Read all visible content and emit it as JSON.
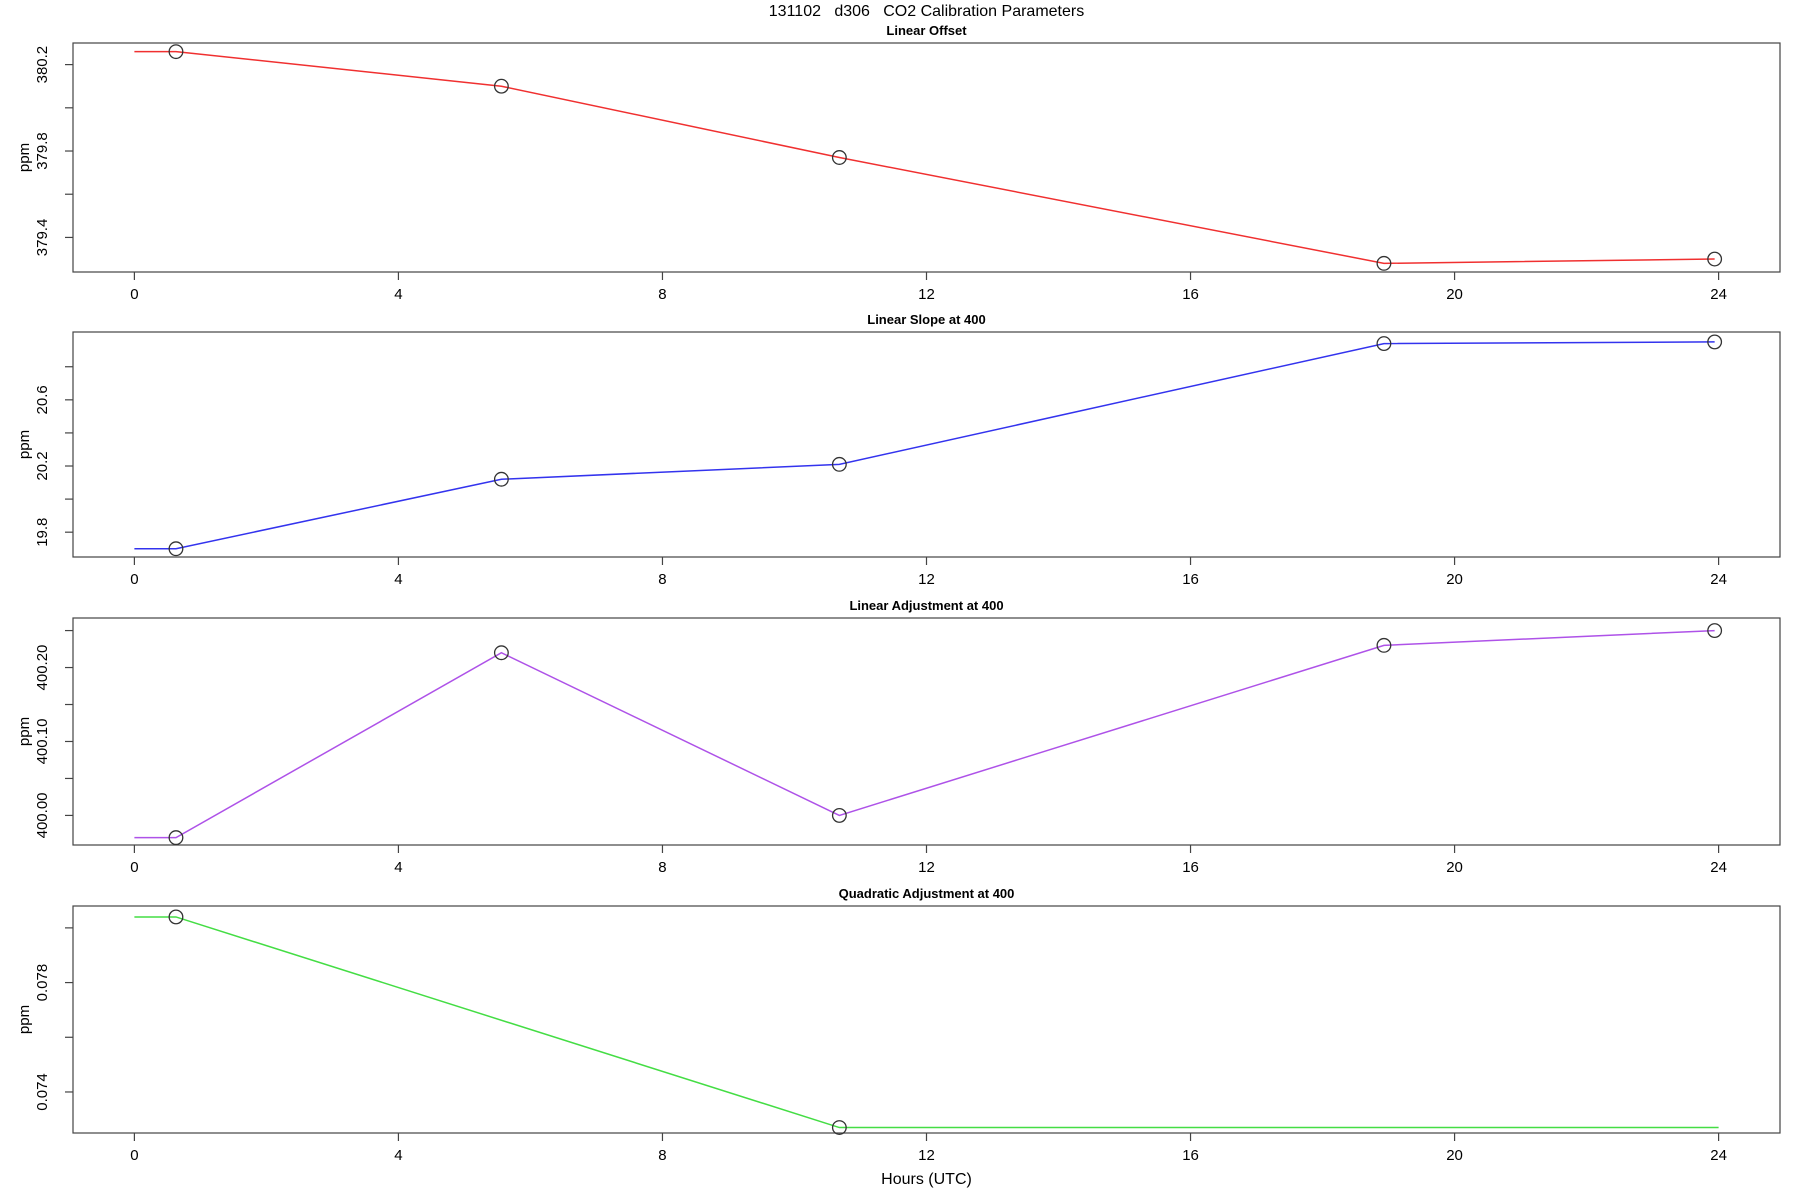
{
  "figure": {
    "title": "131102   d306   CO2 Calibration Parameters",
    "xlabel": "Hours (UTC)"
  },
  "style": {
    "axis_color": "#444444",
    "marker_color": "#333333",
    "background": "#ffffff"
  },
  "chart_data": [
    {
      "type": "line",
      "title": "Linear Offset",
      "ylabel": "ppm",
      "line_color": "#F03030",
      "x": [
        0,
        0.63,
        5.56,
        10.68,
        18.93,
        23.94
      ],
      "y": [
        380.26,
        380.26,
        380.1,
        379.77,
        379.28,
        379.3
      ],
      "marker_x": [
        0.63,
        5.56,
        10.68,
        18.93,
        23.94
      ],
      "marker_y": [
        380.26,
        380.1,
        379.77,
        379.28,
        379.3
      ],
      "xlim": [
        -0.93,
        24.93
      ],
      "ylim": [
        379.24,
        380.3
      ],
      "xticks": [
        0,
        4,
        8,
        12,
        16,
        20,
        24
      ],
      "xtick_labels": [
        "0",
        "4",
        "8",
        "12",
        "16",
        "20",
        "24"
      ],
      "yticks_major": [
        379.4,
        379.8,
        380.2
      ],
      "ytick_labels": [
        "379.4",
        "379.8",
        "380.2"
      ],
      "yticks_minor": [
        379.6,
        380.0
      ],
      "grid": false,
      "legend": null
    },
    {
      "type": "line",
      "title": "Linear Slope at 400",
      "ylabel": "ppm",
      "line_color": "#3333EE",
      "x": [
        0,
        0.63,
        5.56,
        10.68,
        18.93,
        23.94
      ],
      "y": [
        19.7,
        19.7,
        20.12,
        20.21,
        20.94,
        20.95
      ],
      "marker_x": [
        0.63,
        5.56,
        10.68,
        18.93,
        23.94
      ],
      "marker_y": [
        19.7,
        20.12,
        20.21,
        20.94,
        20.95
      ],
      "xlim": [
        -0.93,
        24.93
      ],
      "ylim": [
        19.65,
        21.01
      ],
      "xticks": [
        0,
        4,
        8,
        12,
        16,
        20,
        24
      ],
      "xtick_labels": [
        "0",
        "4",
        "8",
        "12",
        "16",
        "20",
        "24"
      ],
      "yticks_major": [
        19.8,
        20.2,
        20.6
      ],
      "ytick_labels": [
        "19.8",
        "20.2",
        "20.6"
      ],
      "yticks_minor": [
        20.0,
        20.4,
        20.8
      ],
      "grid": false,
      "legend": null
    },
    {
      "type": "line",
      "title": "Linear Adjustment at 400",
      "ylabel": "ppm",
      "line_color": "#AE52E8",
      "x": [
        0,
        0.63,
        5.56,
        10.68,
        18.93,
        23.94
      ],
      "y": [
        399.97,
        399.97,
        400.22,
        400.0,
        400.23,
        400.25
      ],
      "marker_x": [
        0.63,
        5.56,
        10.68,
        18.93,
        23.94
      ],
      "marker_y": [
        399.97,
        400.22,
        400.0,
        400.23,
        400.25
      ],
      "xlim": [
        -0.93,
        24.93
      ],
      "ylim": [
        399.96,
        400.267
      ],
      "xticks": [
        0,
        4,
        8,
        12,
        16,
        20,
        24
      ],
      "xtick_labels": [
        "0",
        "4",
        "8",
        "12",
        "16",
        "20",
        "24"
      ],
      "yticks_major": [
        400.0,
        400.1,
        400.2
      ],
      "ytick_labels": [
        "400.00",
        "400.10",
        "400.20"
      ],
      "yticks_minor": [
        400.05,
        400.15,
        400.25
      ],
      "grid": false,
      "legend": null
    },
    {
      "type": "line",
      "title": "Quadratic Adjustment at 400",
      "ylabel": "ppm",
      "line_color": "#44DD44",
      "x": [
        0,
        0.63,
        10.68,
        24
      ],
      "y": [
        0.0804,
        0.0804,
        0.0727,
        0.0727
      ],
      "marker_x": [
        0.63,
        10.68
      ],
      "marker_y": [
        0.0804,
        0.0727
      ],
      "xlim": [
        -0.93,
        24.93
      ],
      "ylim": [
        0.0725,
        0.0808
      ],
      "xticks": [
        0,
        4,
        8,
        12,
        16,
        20,
        24
      ],
      "xtick_labels": [
        "0",
        "4",
        "8",
        "12",
        "16",
        "20",
        "24"
      ],
      "yticks_major": [
        0.074,
        0.078
      ],
      "ytick_labels": [
        "0.074",
        "0.078"
      ],
      "yticks_minor": [
        0.076,
        0.08
      ],
      "grid": false,
      "legend": null
    }
  ]
}
